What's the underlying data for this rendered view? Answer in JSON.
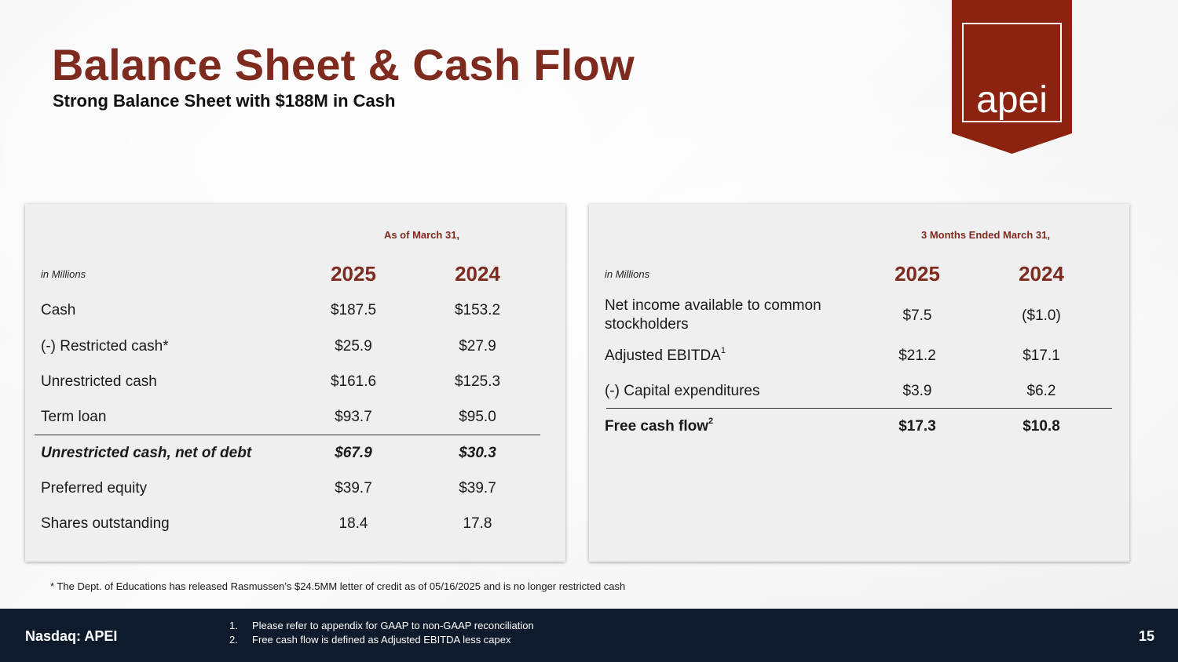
{
  "header": {
    "title": "Balance Sheet & Cash Flow",
    "subtitle": "Strong Balance Sheet with $188M in Cash",
    "logo_text": "apei"
  },
  "colors": {
    "brand": "#7e2a1f",
    "logo_red": "#8b2310",
    "footer_bg": "#0e1b2c"
  },
  "balance_sheet": {
    "period_label": "As of March 31,",
    "units_label": "in Millions",
    "years": [
      "2025",
      "2024"
    ],
    "rows": [
      {
        "label": "Cash",
        "v2025": "$187.5",
        "v2024": "$153.2"
      },
      {
        "label": "(-) Restricted cash*",
        "v2025": "$25.9",
        "v2024": "$27.9"
      },
      {
        "label": "Unrestricted cash",
        "v2025": "$161.6",
        "v2024": "$125.3"
      },
      {
        "label": "Term loan",
        "v2025": "$93.7",
        "v2024": "$95.0"
      },
      {
        "label": "Unrestricted cash, net of debt",
        "v2025": "$67.9",
        "v2024": "$30.3"
      },
      {
        "label": "Preferred equity",
        "v2025": "$39.7",
        "v2024": "$39.7"
      },
      {
        "label": "Shares outstanding",
        "v2025": "18.4",
        "v2024": "17.8"
      }
    ]
  },
  "cash_flow": {
    "period_label": "3 Months Ended March 31,",
    "units_label": "in Millions",
    "years": [
      "2025",
      "2024"
    ],
    "rows": [
      {
        "label": "Net income available to common stockholders",
        "v2025": "$7.5",
        "v2024": "($1.0)"
      },
      {
        "label": "Adjusted EBITDA",
        "sup": "1",
        "v2025": "$21.2",
        "v2024": "$17.1"
      },
      {
        "label": "(-) Capital expenditures",
        "v2025": "$3.9",
        "v2024": "$6.2"
      },
      {
        "label": "Free cash flow",
        "sup": "2",
        "v2025": "$17.3",
        "v2024": "$10.8"
      }
    ]
  },
  "footnote_star": "* The Dept. of Educations has released Rasmussen’s $24.5MM letter of credit as of 05/16/2025 and is no longer restricted cash",
  "footer": {
    "ticker": "Nasdaq: APEI",
    "notes": [
      {
        "num": "1.",
        "text": "Please refer to appendix for GAAP to non-GAAP reconciliation"
      },
      {
        "num": "2.",
        "text": "Free cash flow is defined as Adjusted EBITDA less capex"
      }
    ],
    "page_number": "15"
  }
}
